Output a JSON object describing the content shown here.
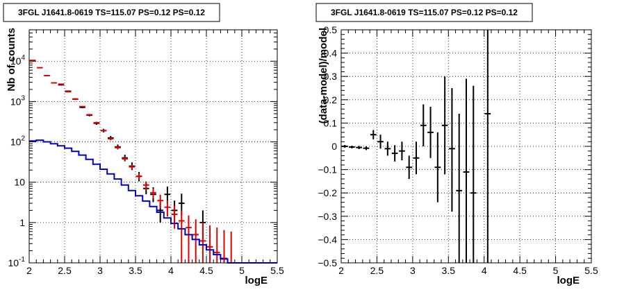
{
  "chart_data": [
    {
      "type": "scatter",
      "title": "3FGL J1641.8-0619 TS=115.07 PS=0.12 PS=0.12",
      "xlabel": "logE",
      "ylabel": "Nb of counts",
      "xlim": [
        2,
        5.5
      ],
      "ylim": [
        0.1,
        60000
      ],
      "yscale": "log",
      "grid": true,
      "x_ticks": [
        "2",
        "2.5",
        "3",
        "3.5",
        "4",
        "4.5",
        "5",
        "5.5"
      ],
      "y_ticks": [
        {
          "value": 0.1,
          "base": "10",
          "exp": "-1"
        },
        {
          "value": 1,
          "text": "1"
        },
        {
          "value": 10,
          "text": "10"
        },
        {
          "value": 100,
          "base": "10",
          "exp": "2"
        },
        {
          "value": 1000,
          "base": "10",
          "exp": "3"
        },
        {
          "value": 10000,
          "base": "10",
          "exp": "4"
        }
      ],
      "series": [
        {
          "kind": "errorbar",
          "color": "#000000",
          "points": [
            {
              "x": 2.45,
              "y": 2600,
              "lo": 2500,
              "hi": 2700
            },
            {
              "x": 2.55,
              "y": 1800,
              "lo": 1720,
              "hi": 1880
            },
            {
              "x": 2.65,
              "y": 1150,
              "lo": 1090,
              "hi": 1210
            },
            {
              "x": 2.75,
              "y": 720,
              "lo": 680,
              "hi": 760
            },
            {
              "x": 2.85,
              "y": 460,
              "lo": 430,
              "hi": 490
            },
            {
              "x": 2.95,
              "y": 290,
              "lo": 265,
              "hi": 315
            },
            {
              "x": 3.05,
              "y": 190,
              "lo": 172,
              "hi": 210
            },
            {
              "x": 3.15,
              "y": 125,
              "lo": 110,
              "hi": 140
            },
            {
              "x": 3.25,
              "y": 75,
              "lo": 65,
              "hi": 86
            },
            {
              "x": 3.35,
              "y": 40,
              "lo": 33,
              "hi": 48
            },
            {
              "x": 3.45,
              "y": 25,
              "lo": 20,
              "hi": 31
            },
            {
              "x": 3.55,
              "y": 14,
              "lo": 10.5,
              "hi": 18
            },
            {
              "x": 3.65,
              "y": 7,
              "lo": 5,
              "hi": 10
            },
            {
              "x": 3.75,
              "y": 5,
              "lo": 3.2,
              "hi": 7.5
            },
            {
              "x": 3.85,
              "y": 2,
              "lo": 1.0,
              "hi": 3.2
            },
            {
              "x": 3.95,
              "y": 5,
              "lo": 3.0,
              "hi": 7.8
            },
            {
              "x": 4.05,
              "y": 2,
              "lo": 0.9,
              "hi": 3.5
            },
            {
              "x": 4.15,
              "y": 3,
              "lo": 1.5,
              "hi": 5.2
            },
            {
              "x": 4.45,
              "y": 1,
              "lo": 0.4,
              "hi": 2.0
            }
          ]
        },
        {
          "kind": "errorbar",
          "color": "#dd0000",
          "points": [
            {
              "x": 2.05,
              "y": 10500,
              "lo": 10300,
              "hi": 10700
            },
            {
              "x": 2.15,
              "y": 6900,
              "lo": 6750,
              "hi": 7050
            },
            {
              "x": 2.25,
              "y": 4400,
              "lo": 4300,
              "hi": 4500
            },
            {
              "x": 2.35,
              "y": 2900,
              "lo": 2830,
              "hi": 2970
            },
            {
              "x": 2.45,
              "y": 2700,
              "lo": 2640,
              "hi": 2760
            },
            {
              "x": 2.55,
              "y": 1750,
              "lo": 1710,
              "hi": 1790
            },
            {
              "x": 2.65,
              "y": 1150,
              "lo": 1120,
              "hi": 1180
            },
            {
              "x": 2.75,
              "y": 750,
              "lo": 730,
              "hi": 770
            },
            {
              "x": 2.85,
              "y": 470,
              "lo": 455,
              "hi": 485
            },
            {
              "x": 2.95,
              "y": 300,
              "lo": 288,
              "hi": 312
            },
            {
              "x": 3.05,
              "y": 190,
              "lo": 180,
              "hi": 200
            },
            {
              "x": 3.15,
              "y": 120,
              "lo": 112,
              "hi": 128
            },
            {
              "x": 3.25,
              "y": 72,
              "lo": 66,
              "hi": 78
            },
            {
              "x": 3.35,
              "y": 38,
              "lo": 34,
              "hi": 42
            },
            {
              "x": 3.45,
              "y": 24,
              "lo": 21,
              "hi": 27
            },
            {
              "x": 3.55,
              "y": 14,
              "lo": 11.5,
              "hi": 16.5
            },
            {
              "x": 3.65,
              "y": 8.5,
              "lo": 6.5,
              "hi": 10.5
            },
            {
              "x": 3.75,
              "y": 5.5,
              "lo": 4.0,
              "hi": 7.0
            },
            {
              "x": 3.85,
              "y": 3.5,
              "lo": 2.3,
              "hi": 4.9
            },
            {
              "x": 3.95,
              "y": 2.4,
              "lo": 1.4,
              "hi": 3.5
            },
            {
              "x": 4.05,
              "y": 1.6,
              "lo": 0.7,
              "hi": 2.6
            },
            {
              "x": 4.15,
              "y": 1.1,
              "lo": 0.1,
              "hi": 2.0
            },
            {
              "x": 4.25,
              "y": 0.75,
              "lo": 0.1,
              "hi": 1.5
            },
            {
              "x": 4.35,
              "y": 0.5,
              "lo": 0.1,
              "hi": 1.2
            },
            {
              "x": 4.45,
              "y": 0.35,
              "lo": 0.1,
              "hi": 1.0
            },
            {
              "x": 4.55,
              "y": 0.25,
              "lo": 0.1,
              "hi": 0.85
            },
            {
              "x": 4.65,
              "y": 0.18,
              "lo": 0.1,
              "hi": 0.75
            },
            {
              "x": 4.75,
              "y": 0.13,
              "lo": 0.1,
              "hi": 0.65
            },
            {
              "x": 4.85,
              "y": 0.1,
              "lo": 0.1,
              "hi": 0.6
            }
          ]
        },
        {
          "kind": "step",
          "color": "#0000cc",
          "edges": [
            2.0,
            2.1,
            2.2,
            2.3,
            2.4,
            2.5,
            2.6,
            2.7,
            2.8,
            2.9,
            3.0,
            3.1,
            3.2,
            3.3,
            3.4,
            3.5,
            3.6,
            3.7,
            3.8,
            3.9,
            4.0,
            4.1,
            4.2,
            4.3,
            4.4,
            4.5,
            4.6,
            4.7,
            4.8,
            4.9,
            5.0,
            5.1,
            5.2,
            5.3,
            5.4,
            5.5
          ],
          "values": [
            105,
            110,
            100,
            90,
            80,
            70,
            58,
            47,
            37,
            28,
            21,
            16,
            12,
            8.5,
            6.2,
            4.6,
            3.4,
            2.5,
            1.8,
            1.3,
            0.95,
            0.7,
            0.5,
            0.38,
            0.28,
            0.21,
            0.16,
            0.125,
            0.1,
            0.1,
            0.1,
            0.1,
            0.1,
            0.1,
            0.1
          ]
        }
      ]
    },
    {
      "type": "scatter",
      "title": "3FGL J1641.8-0619 TS=115.07 PS=0.12 PS=0.12",
      "xlabel": "logE",
      "ylabel": "(data-model)/model",
      "xlim": [
        2,
        5.5
      ],
      "ylim": [
        -0.5,
        0.5
      ],
      "grid": true,
      "x_ticks": [
        "2",
        "2.5",
        "3",
        "3.5",
        "4",
        "4.5",
        "5",
        "5.5"
      ],
      "y_ticks": [
        "−0.5",
        "−0.4",
        "−0.3",
        "−0.2",
        "−0.1",
        "0",
        "0.1",
        "0.2",
        "0.3",
        "0.4",
        "0.5"
      ],
      "series": [
        {
          "kind": "errorbar",
          "color": "#000000",
          "points": [
            {
              "x": 2.05,
              "y": 0.0,
              "lo": -0.006,
              "hi": 0.006
            },
            {
              "x": 2.15,
              "y": -0.003,
              "lo": -0.009,
              "hi": 0.003
            },
            {
              "x": 2.25,
              "y": -0.005,
              "lo": -0.012,
              "hi": 0.002
            },
            {
              "x": 2.35,
              "y": -0.008,
              "lo": -0.016,
              "hi": 0.0
            },
            {
              "x": 2.45,
              "y": 0.05,
              "lo": 0.03,
              "hi": 0.07
            },
            {
              "x": 2.55,
              "y": 0.02,
              "lo": -0.01,
              "hi": 0.05
            },
            {
              "x": 2.65,
              "y": -0.01,
              "lo": -0.04,
              "hi": 0.02
            },
            {
              "x": 2.75,
              "y": -0.03,
              "lo": -0.065,
              "hi": 0.005
            },
            {
              "x": 2.85,
              "y": -0.02,
              "lo": -0.06,
              "hi": 0.02
            },
            {
              "x": 2.95,
              "y": -0.09,
              "lo": -0.14,
              "hi": -0.04
            },
            {
              "x": 3.05,
              "y": -0.05,
              "lo": -0.12,
              "hi": 0.02
            },
            {
              "x": 3.15,
              "y": 0.09,
              "lo": 0.0,
              "hi": 0.18
            },
            {
              "x": 3.25,
              "y": 0.06,
              "lo": -0.05,
              "hi": 0.17
            },
            {
              "x": 3.35,
              "y": -0.09,
              "lo": -0.24,
              "hi": 0.06
            },
            {
              "x": 3.45,
              "y": 0.09,
              "lo": -0.12,
              "hi": 0.3
            },
            {
              "x": 3.55,
              "y": -0.01,
              "lo": -0.28,
              "hi": 0.25
            },
            {
              "x": 3.65,
              "y": -0.19,
              "lo": -0.5,
              "hi": 0.14
            },
            {
              "x": 3.75,
              "y": -0.11,
              "lo": -0.5,
              "hi": 0.29
            },
            {
              "x": 3.85,
              "y": -0.2,
              "lo": -0.5,
              "hi": 0.26
            },
            {
              "x": 4.05,
              "y": 0.14,
              "lo": -0.5,
              "hi": 0.5
            }
          ]
        }
      ]
    }
  ]
}
